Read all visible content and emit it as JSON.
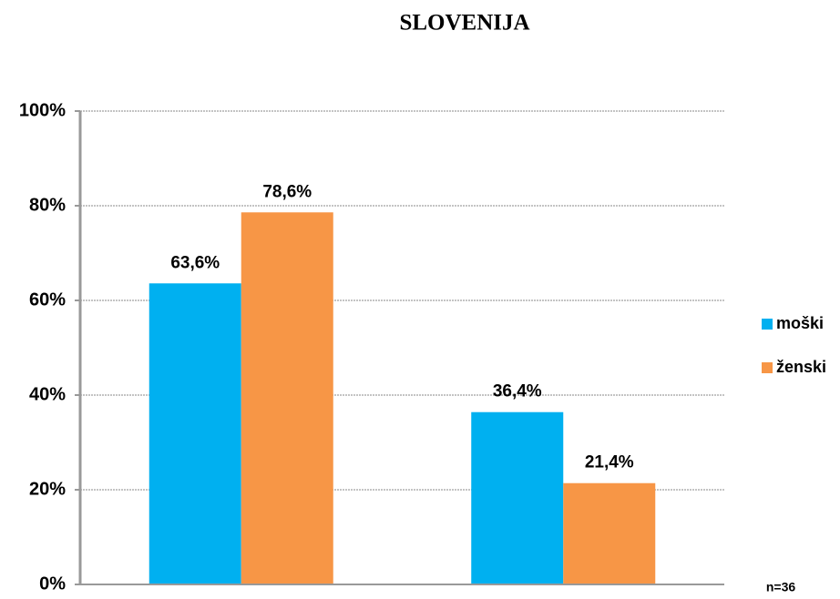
{
  "chart_data": {
    "type": "bar",
    "title": "SLOVENIJA",
    "categories": [
      null,
      null
    ],
    "series": [
      {
        "name": "moški",
        "color": "#00b0f0",
        "values": [
          63.6,
          36.4
        ],
        "value_labels": [
          "63,6%",
          "36,4%"
        ]
      },
      {
        "name": "ženski",
        "color": "#f79646",
        "values": [
          78.6,
          21.4
        ],
        "value_labels": [
          "78,6%",
          "21,4%"
        ]
      }
    ],
    "ylim": [
      0,
      100
    ],
    "yticks": [
      {
        "value": 0,
        "label": "0%"
      },
      {
        "value": 20,
        "label": "20%"
      },
      {
        "value": 40,
        "label": "40%"
      },
      {
        "value": 60,
        "label": "60%"
      },
      {
        "value": 80,
        "label": "80%"
      },
      {
        "value": 100,
        "label": "100%"
      }
    ],
    "grid": true,
    "legend": "right",
    "annotations": [
      "n=36"
    ]
  }
}
